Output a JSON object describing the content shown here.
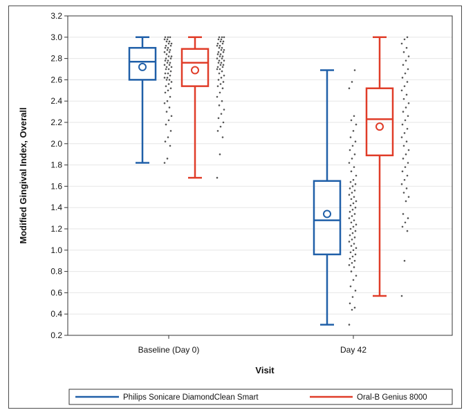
{
  "chart_data": {
    "type": "box",
    "xlabel": "Visit",
    "ylabel": "Modified Gingival Index, Overall",
    "ylim": [
      0.2,
      3.2
    ],
    "yticks": [
      "0.2",
      "0.4",
      "0.6",
      "0.8",
      "1.0",
      "1.2",
      "1.4",
      "1.6",
      "1.8",
      "2.0",
      "2.2",
      "2.4",
      "2.6",
      "2.8",
      "3.0",
      "3.2"
    ],
    "categories": [
      "Baseline (Day 0)",
      "Day 42"
    ],
    "grid": true,
    "legend_position": "bottom",
    "series": [
      {
        "name": "Philips Sonicare DiamondClean Smart",
        "color": "#1f5fa8",
        "boxes": [
          {
            "min": 1.82,
            "q1": 2.6,
            "median": 2.77,
            "q3": 2.9,
            "max": 3.0,
            "mean": 2.72
          },
          {
            "min": 0.3,
            "q1": 0.96,
            "median": 1.28,
            "q3": 1.65,
            "max": 2.69,
            "mean": 1.34
          }
        ],
        "points": [
          [
            1.82,
            1.86,
            1.98,
            2.02,
            2.06,
            2.12,
            2.18,
            2.22,
            2.26,
            2.3,
            2.34,
            2.38,
            2.4,
            2.44,
            2.48,
            2.5,
            2.52,
            2.54,
            2.56,
            2.58,
            2.6,
            2.6,
            2.62,
            2.62,
            2.64,
            2.66,
            2.66,
            2.68,
            2.7,
            2.7,
            2.72,
            2.72,
            2.74,
            2.74,
            2.76,
            2.76,
            2.78,
            2.78,
            2.8,
            2.8,
            2.82,
            2.82,
            2.84,
            2.86,
            2.86,
            2.88,
            2.88,
            2.9,
            2.9,
            2.92,
            2.92,
            2.94,
            2.94,
            2.96,
            2.96,
            2.98,
            2.98,
            3.0,
            3.0,
            3.0
          ],
          [
            0.3,
            0.44,
            0.46,
            0.5,
            0.56,
            0.62,
            0.66,
            0.72,
            0.76,
            0.8,
            0.84,
            0.86,
            0.88,
            0.9,
            0.92,
            0.94,
            0.96,
            0.98,
            1.0,
            1.02,
            1.04,
            1.06,
            1.08,
            1.1,
            1.12,
            1.14,
            1.16,
            1.18,
            1.2,
            1.22,
            1.24,
            1.26,
            1.28,
            1.3,
            1.32,
            1.34,
            1.36,
            1.38,
            1.4,
            1.42,
            1.44,
            1.46,
            1.48,
            1.5,
            1.52,
            1.54,
            1.56,
            1.58,
            1.6,
            1.62,
            1.64,
            1.66,
            1.7,
            1.74,
            1.78,
            1.82,
            1.86,
            1.9,
            1.94,
            1.98,
            2.02,
            2.06,
            2.12,
            2.18,
            2.22,
            2.26,
            2.52,
            2.58,
            2.69
          ]
        ]
      },
      {
        "name": "Oral-B Genius 8000",
        "color": "#e03c28",
        "boxes": [
          {
            "min": 1.68,
            "q1": 2.54,
            "median": 2.76,
            "q3": 2.89,
            "max": 3.0,
            "mean": 2.69
          },
          {
            "min": 0.57,
            "q1": 1.89,
            "median": 2.23,
            "q3": 2.52,
            "max": 3.0,
            "mean": 2.16
          }
        ],
        "points": [
          [
            1.68,
            1.9,
            2.06,
            2.12,
            2.16,
            2.2,
            2.24,
            2.28,
            2.32,
            2.36,
            2.4,
            2.44,
            2.48,
            2.52,
            2.54,
            2.56,
            2.58,
            2.6,
            2.62,
            2.64,
            2.66,
            2.68,
            2.7,
            2.7,
            2.72,
            2.72,
            2.74,
            2.74,
            2.76,
            2.76,
            2.78,
            2.78,
            2.8,
            2.8,
            2.82,
            2.82,
            2.84,
            2.84,
            2.86,
            2.86,
            2.88,
            2.88,
            2.9,
            2.9,
            2.92,
            2.92,
            2.94,
            2.94,
            2.96,
            2.96,
            2.98,
            2.98,
            3.0,
            3.0,
            3.0
          ],
          [
            0.57,
            0.9,
            1.18,
            1.22,
            1.26,
            1.3,
            1.34,
            1.46,
            1.5,
            1.54,
            1.58,
            1.62,
            1.66,
            1.7,
            1.74,
            1.78,
            1.82,
            1.86,
            1.9,
            1.94,
            1.98,
            2.02,
            2.06,
            2.1,
            2.14,
            2.18,
            2.22,
            2.26,
            2.3,
            2.34,
            2.38,
            2.42,
            2.46,
            2.5,
            2.54,
            2.58,
            2.62,
            2.66,
            2.7,
            2.74,
            2.78,
            2.82,
            2.86,
            2.9,
            2.94,
            2.98,
            3.0
          ]
        ]
      }
    ]
  }
}
